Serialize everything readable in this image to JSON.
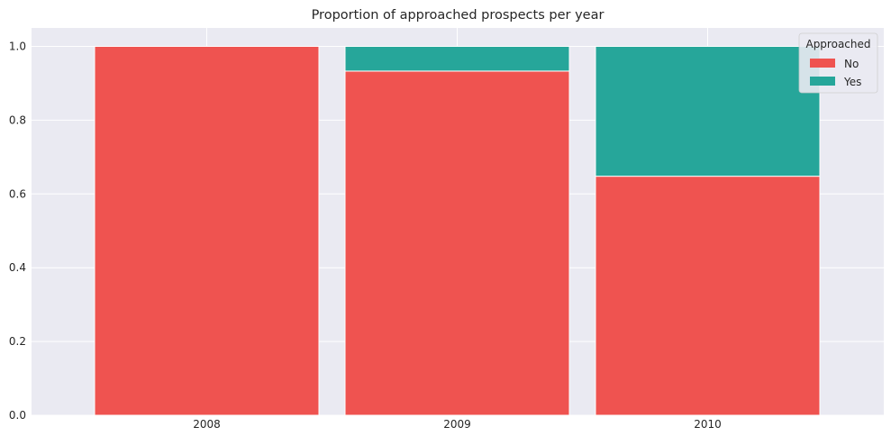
{
  "chart_data": {
    "type": "bar",
    "stacked": true,
    "title": "Proportion of approached prospects per year",
    "xlabel": "",
    "ylabel": "",
    "categories": [
      "2008",
      "2009",
      "2010"
    ],
    "series": [
      {
        "name": "No",
        "values": [
          1.0,
          0.933,
          0.648
        ],
        "color": "#ef5350"
      },
      {
        "name": "Yes",
        "values": [
          0.0,
          0.067,
          0.352
        ],
        "color": "#26a69a"
      }
    ],
    "ylim": [
      0,
      1.05
    ],
    "yticks": [
      0.0,
      0.2,
      0.4,
      0.6,
      0.8,
      1.0
    ],
    "ytick_labels": [
      "0.0",
      "0.2",
      "0.4",
      "0.6",
      "0.8",
      "1.0"
    ],
    "grid": true,
    "background_color": "#eaeaf2",
    "legend": {
      "title": "Approached",
      "position": "top-right"
    }
  }
}
